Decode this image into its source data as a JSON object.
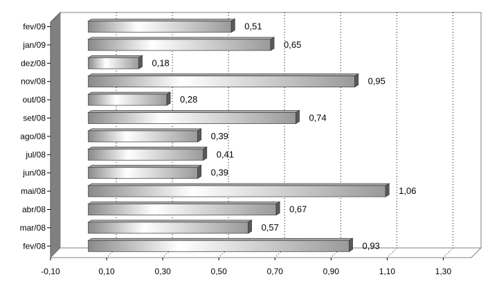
{
  "chart_data": {
    "type": "bar",
    "orientation": "horizontal",
    "style": "3d",
    "categories": [
      "fev/09",
      "jan/09",
      "dez/08",
      "nov/08",
      "out/08",
      "set/08",
      "ago/08",
      "jul/08",
      "jun/08",
      "mai/08",
      "abr/08",
      "mar/08",
      "fev/08"
    ],
    "values": [
      0.51,
      0.65,
      0.18,
      0.95,
      0.28,
      0.74,
      0.39,
      0.41,
      0.39,
      1.06,
      0.67,
      0.57,
      0.93
    ],
    "value_labels": [
      "0,51",
      "0,65",
      "0,18",
      "0,95",
      "0,28",
      "0,74",
      "0,39",
      "0,41",
      "0,39",
      "1,06",
      "0,67",
      "0,57",
      "0,93"
    ],
    "x_ticks": [
      "-0,10",
      "0,10",
      "0,30",
      "0,50",
      "0,70",
      "0,90",
      "1,10",
      "1,30"
    ],
    "xlim": [
      -0.1,
      1.4
    ],
    "grid": "vertical dotted",
    "title": "",
    "xlabel": "",
    "ylabel": "",
    "legend": "none",
    "colors": {
      "bar_light": "#ffffff",
      "bar_dark": "#7a7a7a",
      "bar_top": "#a8a8a8",
      "bar_side": "#5a5a5a",
      "wall": "#808080",
      "grid": "#000000"
    }
  }
}
